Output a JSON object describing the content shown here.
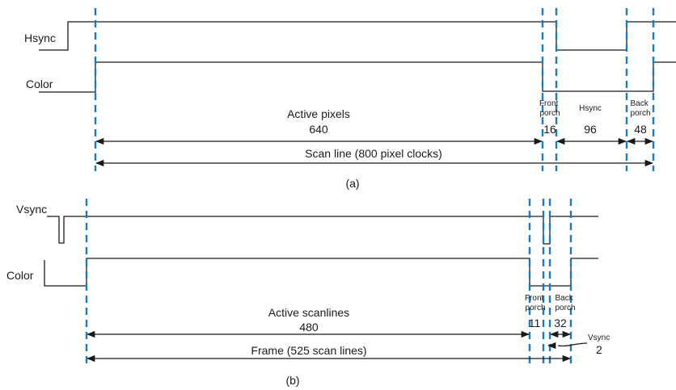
{
  "part_a": {
    "signal_labels": {
      "hsync": "Hsync",
      "color": "Color"
    },
    "active_label": "Active pixels",
    "active_value": "640",
    "front_porch": "Front\nporch",
    "front_value": "16",
    "sync_label": "Hsync",
    "sync_value": "96",
    "back_porch": "Back\nporch",
    "back_value": "48",
    "total_label": "Scan line (800 pixel clocks)",
    "caption": "(a)"
  },
  "part_b": {
    "signal_labels": {
      "vsync": "Vsync",
      "color": "Color"
    },
    "active_label": "Active scanlines",
    "active_value": "480",
    "front_porch": "Front\nporch",
    "front_value": "11",
    "back_porch": "Back\nporch",
    "back_value": "32",
    "sync_label": "Vsync",
    "sync_value": "2",
    "total_label": "Frame (525 scan lines)",
    "caption": "(b)"
  },
  "colors": {
    "marker": "#1b7bc2",
    "signal": "#1a1a1a"
  }
}
